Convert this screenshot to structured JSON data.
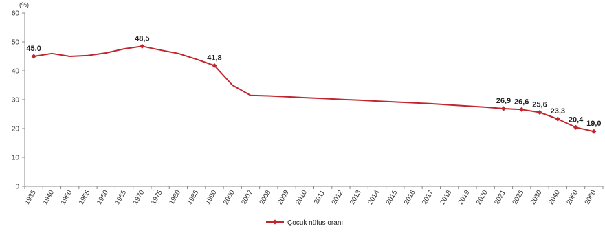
{
  "chart_data": {
    "type": "line",
    "unit_label": "(%)",
    "ylim": [
      0,
      60
    ],
    "yticks": [
      "0",
      "10",
      "20",
      "30",
      "40",
      "50",
      "60"
    ],
    "grid": false,
    "legend_position": "bottom-center",
    "color": "#c0262e",
    "categories": [
      "1935",
      "1940",
      "1950",
      "1955",
      "1960",
      "1965",
      "1970",
      "1975",
      "1980",
      "1985",
      "1990",
      "2000",
      "2007",
      "2008",
      "2009",
      "2010",
      "2011",
      "2012",
      "2013",
      "2014",
      "2015",
      "2016",
      "2017",
      "2018",
      "2019",
      "2020",
      "2021",
      "2025",
      "2030",
      "2040",
      "2050",
      "2060"
    ],
    "series": [
      {
        "name": "Çocuk nüfus oranı",
        "values": [
          45.0,
          46.0,
          45.0,
          45.3,
          46.2,
          47.6,
          48.5,
          47.2,
          46.0,
          44.0,
          41.8,
          35.0,
          31.5,
          31.3,
          31.0,
          30.7,
          30.4,
          30.1,
          29.8,
          29.5,
          29.2,
          28.9,
          28.6,
          28.2,
          27.8,
          27.4,
          26.9,
          26.6,
          25.6,
          23.3,
          20.4,
          19.0
        ],
        "labels": [
          "45,0",
          "",
          "",
          "",
          "",
          "",
          "48,5",
          "",
          "",
          "",
          "41,8",
          "",
          "",
          "",
          "",
          "",
          "",
          "",
          "",
          "",
          "",
          "",
          "",
          "",
          "",
          "",
          "26,9",
          "26,6",
          "25,6",
          "23,3",
          "20,4",
          "19,0"
        ],
        "markers": [
          true,
          false,
          false,
          false,
          false,
          false,
          true,
          false,
          false,
          false,
          true,
          false,
          false,
          false,
          false,
          false,
          false,
          false,
          false,
          false,
          false,
          false,
          false,
          false,
          false,
          false,
          true,
          true,
          true,
          true,
          true,
          true
        ]
      }
    ]
  }
}
